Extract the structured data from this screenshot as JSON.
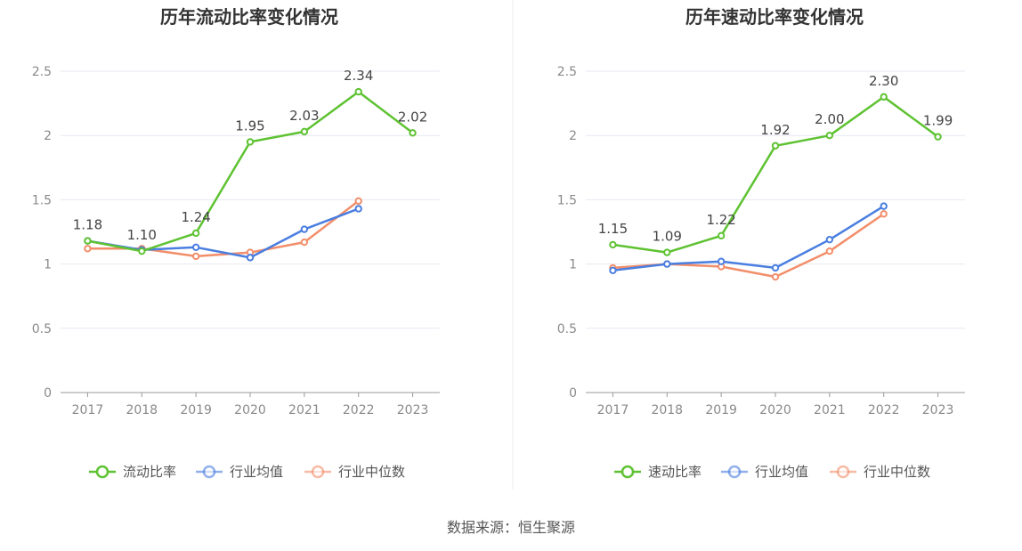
{
  "source": "数据来源：恒生聚源",
  "colors": {
    "main": "#5ec232",
    "avg": "#4a7ee0",
    "median": "#f28e6a",
    "grid": "#e6e9f2",
    "axis": "#999999"
  },
  "chart_data": [
    {
      "type": "line",
      "title": "历年流动比率变化情况",
      "categories": [
        "2017",
        "2018",
        "2019",
        "2020",
        "2021",
        "2022",
        "2023"
      ],
      "ylim": [
        0,
        2.5
      ],
      "yticks": [
        "0",
        "0.5",
        "1",
        "1.5",
        "2",
        "2.5"
      ],
      "grid": true,
      "legend_position": "bottom",
      "series": [
        {
          "name": "流动比率",
          "values": [
            1.18,
            1.1,
            1.24,
            1.95,
            2.03,
            2.34,
            2.02
          ],
          "labels": [
            "1.18",
            "1.10",
            "1.24",
            "1.95",
            "2.03",
            "2.34",
            "2.02"
          ]
        },
        {
          "name": "行业均值",
          "values": [
            1.18,
            1.11,
            1.13,
            1.05,
            1.27,
            1.43,
            null
          ]
        },
        {
          "name": "行业中位数",
          "values": [
            1.12,
            1.12,
            1.06,
            1.09,
            1.17,
            1.49,
            null
          ]
        }
      ]
    },
    {
      "type": "line",
      "title": "历年速动比率变化情况",
      "categories": [
        "2017",
        "2018",
        "2019",
        "2020",
        "2021",
        "2022",
        "2023"
      ],
      "ylim": [
        0,
        2.5
      ],
      "yticks": [
        "0",
        "0.5",
        "1",
        "1.5",
        "2",
        "2.5"
      ],
      "grid": true,
      "legend_position": "bottom",
      "series": [
        {
          "name": "速动比率",
          "values": [
            1.15,
            1.09,
            1.22,
            1.92,
            2.0,
            2.3,
            1.99
          ],
          "labels": [
            "1.15",
            "1.09",
            "1.22",
            "1.92",
            "2.00",
            "2.30",
            "1.99"
          ]
        },
        {
          "name": "行业均值",
          "values": [
            0.95,
            1.0,
            1.02,
            0.97,
            1.19,
            1.45,
            null
          ]
        },
        {
          "name": "行业中位数",
          "values": [
            0.97,
            1.0,
            0.98,
            0.9,
            1.1,
            1.39,
            null
          ]
        }
      ]
    }
  ]
}
